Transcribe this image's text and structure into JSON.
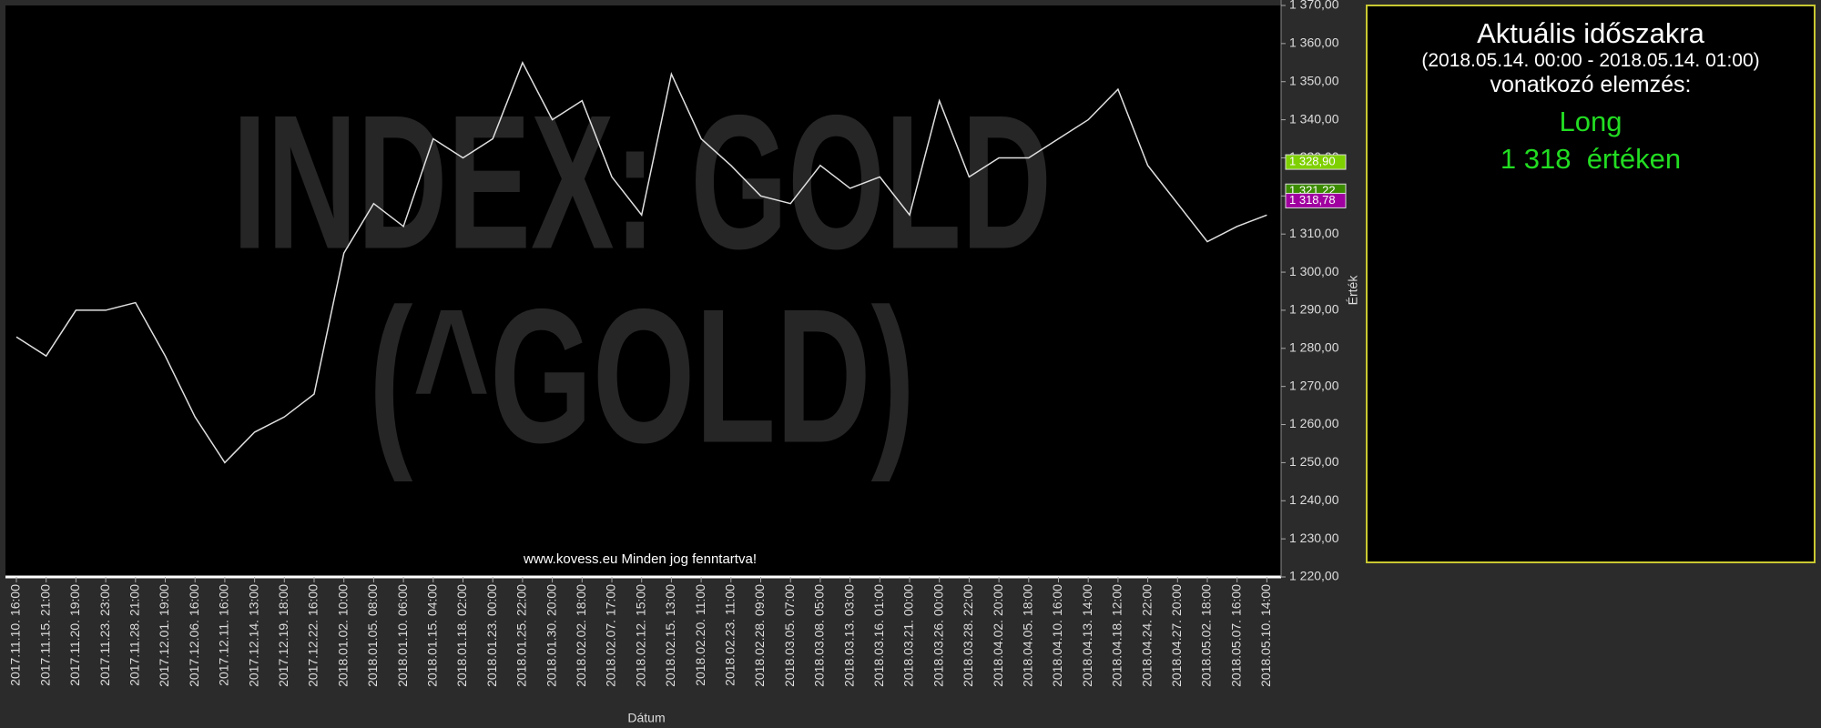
{
  "chart_data": {
    "type": "line",
    "watermark": [
      "INDEX: GOLD",
      "(^GOLD)"
    ],
    "footer": "www.kovess.eu Minden jog fenntartva!",
    "x_label": "Dátum",
    "y_label": "Érték",
    "categories": [
      "2017.11.10. 16:00",
      "2017.11.15. 21:00",
      "2017.11.20. 19:00",
      "2017.11.23. 23:00",
      "2017.11.28. 21:00",
      "2017.12.01. 19:00",
      "2017.12.06. 16:00",
      "2017.12.11. 16:00",
      "2017.12.14. 13:00",
      "2017.12.19. 18:00",
      "2017.12.22. 16:00",
      "2018.01.02. 10:00",
      "2018.01.05. 08:00",
      "2018.01.10. 06:00",
      "2018.01.15. 04:00",
      "2018.01.18. 02:00",
      "2018.01.23. 00:00",
      "2018.01.25. 22:00",
      "2018.01.30. 20:00",
      "2018.02.02. 18:00",
      "2018.02.07. 17:00",
      "2018.02.12. 15:00",
      "2018.02.15. 13:00",
      "2018.02.20. 11:00",
      "2018.02.23. 11:00",
      "2018.02.28. 09:00",
      "2018.03.05. 07:00",
      "2018.03.08. 05:00",
      "2018.03.13. 03:00",
      "2018.03.16. 01:00",
      "2018.03.21. 00:00",
      "2018.03.26. 00:00",
      "2018.03.28. 22:00",
      "2018.04.02. 20:00",
      "2018.04.05. 18:00",
      "2018.04.10. 16:00",
      "2018.04.13. 14:00",
      "2018.04.18. 12:00",
      "2018.04.24. 22:00",
      "2018.04.27. 20:00",
      "2018.05.02. 18:00",
      "2018.05.07. 16:00",
      "2018.05.10. 14:00"
    ],
    "series": [
      {
        "color": "#e0e0e0",
        "values": [
          1283,
          1278,
          1290,
          1290,
          1292,
          1278,
          1262,
          1250,
          1258,
          1262,
          1268,
          1305,
          1318,
          1312,
          1335,
          1330,
          1335,
          1355,
          1340,
          1345,
          1325,
          1315,
          1352,
          1335,
          1328,
          1320,
          1318,
          1328,
          1322,
          1325,
          1315,
          1345,
          1325,
          1330,
          1330,
          1335,
          1340,
          1348,
          1328,
          1318,
          1308,
          1312,
          1315
        ]
      }
    ],
    "ylim": [
      1220,
      1370
    ],
    "yticks": [
      {
        "value": 1220,
        "label": "1 220,00"
      },
      {
        "value": 1230,
        "label": "1 230,00"
      },
      {
        "value": 1240,
        "label": "1 240,00"
      },
      {
        "value": 1250,
        "label": "1 250,00"
      },
      {
        "value": 1260,
        "label": "1 260,00"
      },
      {
        "value": 1270,
        "label": "1 270,00"
      },
      {
        "value": 1280,
        "label": "1 280,00"
      },
      {
        "value": 1290,
        "label": "1 290,00"
      },
      {
        "value": 1300,
        "label": "1 300,00"
      },
      {
        "value": 1310,
        "label": "1 310,00"
      },
      {
        "value": 1320,
        "label": "1 320,00"
      },
      {
        "value": 1330,
        "label": "1 330,00"
      },
      {
        "value": 1340,
        "label": "1 340,00"
      },
      {
        "value": 1350,
        "label": "1 350,00"
      },
      {
        "value": 1360,
        "label": "1 360,00"
      },
      {
        "value": 1370,
        "label": "1 370,00"
      }
    ],
    "price_markers": [
      {
        "value": 1328.9,
        "label": "1 328,90",
        "color": "#7fd000"
      },
      {
        "value": 1321.22,
        "label": "1 321,22",
        "color": "#3c8c00"
      },
      {
        "value": 1318.78,
        "label": "1 318,78",
        "color": "#a000a0"
      }
    ]
  },
  "panel": {
    "title": "Aktuális időszakra",
    "period": "(2018.05.14. 00:00 - 2018.05.14. 01:00)",
    "subtitle": "vonatkozó elemzés:",
    "signal": "Long",
    "price_text": "1 318  értéken"
  }
}
